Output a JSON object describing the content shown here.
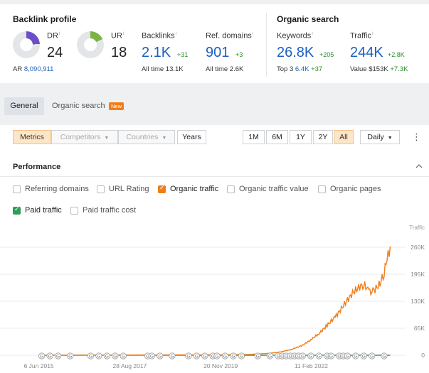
{
  "backlink_profile": {
    "title": "Backlink profile",
    "dr": {
      "label": "DR",
      "value": "24",
      "info": "i",
      "fill": 0.24,
      "color": "#6b4fc7"
    },
    "ar": {
      "label": "AR",
      "value": "8,090,911"
    },
    "ur": {
      "label": "UR",
      "value": "18",
      "info": "i",
      "fill": 0.18,
      "color": "#7cb342"
    },
    "backlinks": {
      "label": "Backlinks",
      "info": "i",
      "value": "2.1K",
      "delta": "+31",
      "sub_label": "All time",
      "sub_value": "13.1K"
    },
    "ref_domains": {
      "label": "Ref. domains",
      "info": "i",
      "value": "901",
      "delta": "+3",
      "sub_label": "All time",
      "sub_value": "2.6K"
    }
  },
  "organic_search": {
    "title": "Organic search",
    "keywords": {
      "label": "Keywords",
      "info": "i",
      "value": "26.8K",
      "delta": "+205",
      "sub_label": "Top 3",
      "sub_value": "6.4K",
      "sub_delta": "+37"
    },
    "traffic": {
      "label": "Traffic",
      "info": "i",
      "value": "244K",
      "delta": "+2.8K",
      "sub_label": "Value",
      "sub_value": "$153K",
      "sub_delta": "+7.3K"
    }
  },
  "tabs": {
    "general": "General",
    "organic": "Organic search",
    "new_badge": "New"
  },
  "toolbar": {
    "metrics": "Metrics",
    "competitors": "Competitors",
    "countries": "Countries",
    "years": "Years",
    "ranges": [
      "1M",
      "6M",
      "1Y",
      "2Y",
      "All"
    ],
    "interval": "Daily",
    "caret": "▼",
    "kebab": "⋮"
  },
  "performance": {
    "title": "Performance",
    "collapse_icon": "chevron-up-icon",
    "checkboxes": [
      {
        "label": "Referring domains",
        "checked": false
      },
      {
        "label": "URL Rating",
        "checked": false
      },
      {
        "label": "Organic traffic",
        "checked": true,
        "color": "#f07d1a"
      },
      {
        "label": "Organic traffic value",
        "checked": false
      },
      {
        "label": "Organic pages",
        "checked": false
      },
      {
        "label": "Paid traffic",
        "checked": true,
        "color": "#2e9e57"
      },
      {
        "label": "Paid traffic cost",
        "checked": false
      }
    ]
  },
  "chart_data": {
    "type": "line",
    "ylabel": "Traffic",
    "y_ticks": [
      "260K",
      "195K",
      "130K",
      "65K",
      "0"
    ],
    "ylim": [
      0,
      260000
    ],
    "x_ticks": [
      "6 Jun 2015",
      "28 Aug 2017",
      "20 Nov 2019",
      "11 Feb 2022"
    ],
    "series": [
      {
        "name": "Organic traffic",
        "color": "#f07d1a",
        "points": [
          [
            2015.43,
            0
          ],
          [
            2017.5,
            500
          ],
          [
            2019.9,
            1000
          ],
          [
            2020.6,
            2000
          ],
          [
            2021.0,
            4000
          ],
          [
            2021.3,
            7000
          ],
          [
            2021.6,
            13000
          ],
          [
            2021.9,
            24000
          ],
          [
            2022.1,
            37000
          ],
          [
            2022.3,
            52000
          ],
          [
            2022.5,
            72000
          ],
          [
            2022.7,
            92000
          ],
          [
            2022.85,
            112000
          ],
          [
            2023.0,
            133000
          ],
          [
            2023.15,
            152000
          ],
          [
            2023.3,
            165000
          ],
          [
            2023.4,
            170000
          ],
          [
            2023.5,
            160000
          ],
          [
            2023.55,
            150000
          ],
          [
            2023.65,
            156000
          ],
          [
            2023.8,
            172000
          ],
          [
            2023.9,
            200000
          ],
          [
            2023.97,
            230000
          ],
          [
            2024.05,
            262000
          ]
        ]
      },
      {
        "name": "Paid traffic",
        "color": "#2e9e57",
        "points": [
          [
            2015.43,
            0
          ],
          [
            2024.05,
            0
          ]
        ]
      }
    ],
    "annotation_marker": "G"
  }
}
